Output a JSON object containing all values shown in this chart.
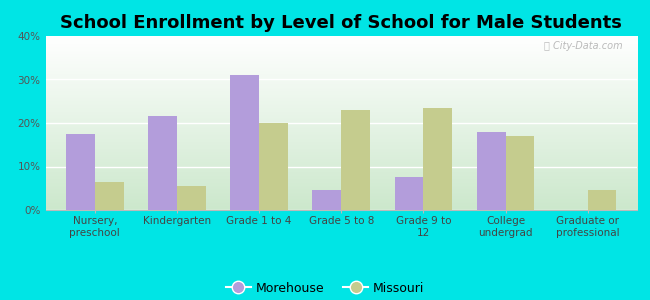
{
  "title": "School Enrollment by Level of School for Male Students",
  "categories": [
    "Nursery,\npreschool",
    "Kindergarten",
    "Grade 1 to 4",
    "Grade 5 to 8",
    "Grade 9 to\n12",
    "College\nundergrad",
    "Graduate or\nprofessional"
  ],
  "morehouse": [
    17.5,
    21.5,
    31.0,
    4.5,
    7.5,
    18.0,
    0.0
  ],
  "missouri": [
    6.5,
    5.5,
    20.0,
    23.0,
    23.5,
    17.0,
    4.5
  ],
  "morehouse_color": "#b39ddb",
  "missouri_color": "#c5cc8e",
  "figure_bg": "#00e5e5",
  "ylim_max": 40,
  "yticks": [
    0,
    10,
    20,
    30,
    40
  ],
  "ytick_labels": [
    "0%",
    "10%",
    "20%",
    "30%",
    "40%"
  ],
  "bar_width": 0.35,
  "title_fontsize": 13,
  "tick_fontsize": 7.5,
  "legend_fontsize": 9,
  "watermark_text": "ⓘ City-Data.com",
  "legend_labels": [
    "Morehouse",
    "Missouri"
  ]
}
